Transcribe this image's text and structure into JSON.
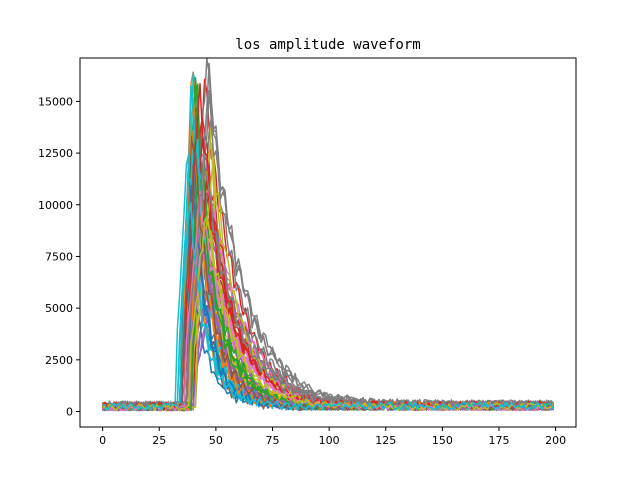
{
  "chart_data": {
    "type": "line",
    "title": "los amplitude waveform",
    "xlabel": "",
    "ylabel": "",
    "xlim": [
      -10,
      209
    ],
    "ylim": [
      -750,
      17100
    ],
    "grid": false,
    "legend": "none",
    "xticks": [
      0,
      25,
      50,
      75,
      100,
      125,
      150,
      175,
      200
    ],
    "yticks": [
      0,
      2500,
      5000,
      7500,
      10000,
      12500,
      15000
    ],
    "x_range": [
      0,
      199
    ],
    "series_count": 10,
    "series": [
      {
        "color": "#1f77b4",
        "onset": 36,
        "peak_at": 39,
        "peak": 13600,
        "decay": 6,
        "noise": 380
      },
      {
        "color": "#ff7f0e",
        "onset": 37,
        "peak_at": 40,
        "peak": 16300,
        "decay": 8,
        "noise": 420
      },
      {
        "color": "#2ca02c",
        "onset": 38,
        "peak_at": 42,
        "peak": 16500,
        "decay": 7,
        "noise": 350
      },
      {
        "color": "#d62728",
        "onset": 39,
        "peak_at": 44,
        "peak": 15800,
        "decay": 11,
        "noise": 450
      },
      {
        "color": "#9467bd",
        "onset": 40,
        "peak_at": 46,
        "peak": 9000,
        "decay": 9,
        "noise": 330
      },
      {
        "color": "#8c564b",
        "onset": 37,
        "peak_at": 41,
        "peak": 14900,
        "decay": 6,
        "noise": 300
      },
      {
        "color": "#e377c2",
        "onset": 38,
        "peak_at": 43,
        "peak": 12800,
        "decay": 12,
        "noise": 280
      },
      {
        "color": "#7f7f7f",
        "onset": 39,
        "peak_at": 45,
        "peak": 16200,
        "decay": 14,
        "noise": 500
      },
      {
        "color": "#bcbd22",
        "onset": 40,
        "peak_at": 46,
        "peak": 14200,
        "decay": 8,
        "noise": 360
      },
      {
        "color": "#17becf",
        "onset": 35,
        "peak_at": 39,
        "peak": 16600,
        "decay": 5,
        "noise": 400
      }
    ]
  }
}
